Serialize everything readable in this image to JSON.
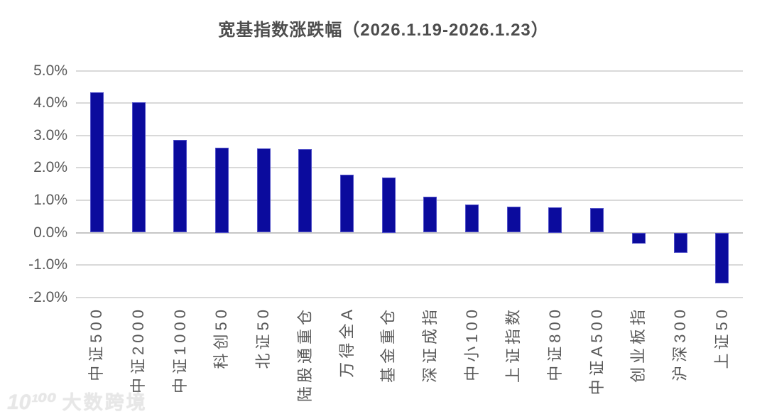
{
  "title": "宽基指数涨跌幅（2026.1.19-2026.1.23）",
  "watermark": {
    "logo_text": "10¹⁰⁰",
    "brand": "大数跨境"
  },
  "chart_data": {
    "type": "bar",
    "title": "宽基指数涨跌幅（2026.1.19-2026.1.23）",
    "categories": [
      "中证500",
      "中证2000",
      "中证1000",
      "科创50",
      "北证50",
      "陆股通重仓",
      "万得全A",
      "基金重仓",
      "深证成指",
      "中小100",
      "上证指数",
      "中证800",
      "中证A500",
      "创业板指",
      "沪深300",
      "上证50"
    ],
    "values": [
      4.33,
      4.03,
      2.87,
      2.62,
      2.6,
      2.58,
      1.79,
      1.71,
      1.1,
      0.86,
      0.81,
      0.79,
      0.76,
      -0.34,
      -0.63,
      -1.56
    ],
    "value_unit": "%",
    "xlabel": "",
    "ylabel": "",
    "ylim": [
      -2.0,
      5.0
    ],
    "ytick_labels": [
      "5.0%",
      "4.0%",
      "3.0%",
      "2.0%",
      "1.0%",
      "0.0%",
      "-1.0%",
      "-2.0%"
    ],
    "grid": true,
    "legend": "none",
    "bar_color": "#0b0b9d",
    "bar_border_color": "#5050c8",
    "gridline_color": "#d9d9d9",
    "zero_line_color": "#c6c6c6",
    "axis_text_color": "#595959",
    "title_color": "#4d4d4d"
  }
}
